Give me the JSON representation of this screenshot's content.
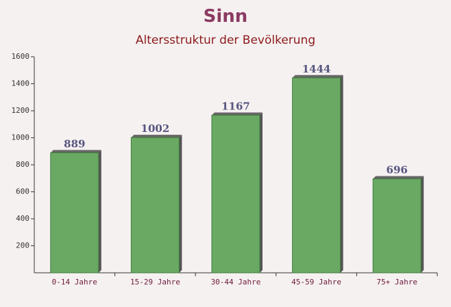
{
  "chart_data": {
    "type": "bar",
    "title": "Sinn",
    "subtitle": "Altersstruktur der Bevölkerung",
    "categories": [
      "0-14 Jahre",
      "15-29 Jahre",
      "30-44 Jahre",
      "45-59 Jahre",
      "75+ Jahre"
    ],
    "values": [
      889,
      1002,
      1167,
      1444,
      696
    ],
    "color": "#6aa964",
    "ylim": [
      0,
      1600
    ],
    "yticks": [
      200,
      400,
      600,
      800,
      1000,
      1200,
      1400,
      1600
    ],
    "grid": false
  }
}
